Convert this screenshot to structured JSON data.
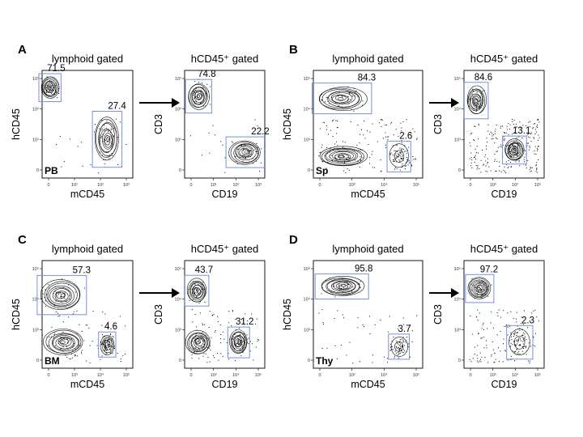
{
  "figure": {
    "panels": [
      {
        "letter": "A",
        "tissue": "PB",
        "plots": [
          {
            "title": "lymphoid gated",
            "xlabel": "mCD45",
            "ylabel": "hCD45",
            "gates": [
              {
                "pct": "71.5",
                "populations": [
                  {
                    "cx": 0.4,
                    "cy": 4.2,
                    "rx": 0.45,
                    "ry": 0.5,
                    "density": "high"
                  }
                ]
              },
              {
                "pct": "27.4",
                "populations": [
                  {
                    "cx": 3.3,
                    "cy": 1.8,
                    "rx": 0.6,
                    "ry": 1.0,
                    "density": "high"
                  }
                ]
              }
            ],
            "background_points": 25,
            "x_ticks": [
              "0",
              "10¹",
              "10²",
              "10³"
            ],
            "y_ticks": [
              "10³",
              "10²",
              "10¹",
              "0"
            ]
          },
          {
            "title": "hCD45⁺ gated",
            "xlabel": "CD19",
            "ylabel": "CD3",
            "gates": [
              {
                "pct": "74.8",
                "populations": [
                  {
                    "cx": 0.8,
                    "cy": 3.8,
                    "rx": 0.6,
                    "ry": 0.6,
                    "density": "high"
                  }
                ]
              },
              {
                "pct": "22.2",
                "populations": [
                  {
                    "cx": 3.5,
                    "cy": 1.2,
                    "rx": 0.9,
                    "ry": 0.55,
                    "density": "high"
                  }
                ]
              }
            ],
            "background_points": 20,
            "x_ticks": [
              "0",
              "10¹",
              "10²",
              "10³"
            ],
            "y_ticks": [
              "10³",
              "10²",
              "10¹",
              "0"
            ]
          }
        ]
      },
      {
        "letter": "B",
        "tissue": "Sp",
        "plots": [
          {
            "title": "lymphoid gated",
            "xlabel": "mCD45",
            "ylabel": "hCD45",
            "gates": [
              {
                "pct": "84.3",
                "populations": [
                  {
                    "cx": 1.2,
                    "cy": 3.7,
                    "rx": 1.0,
                    "ry": 0.55,
                    "density": "high"
                  }
                ]
              },
              {
                "pct": "2.6",
                "populations": [
                  {
                    "cx": 3.6,
                    "cy": 1.0,
                    "rx": 0.4,
                    "ry": 0.55,
                    "density": "low"
                  }
                ]
              }
            ],
            "extra_populations": [
              {
                "cx": 1.2,
                "cy": 1.0,
                "rx": 1.0,
                "ry": 0.45,
                "density": "high"
              }
            ],
            "background_points": 120,
            "x_ticks": [
              "0",
              "10³",
              "10⁴",
              "10⁵"
            ],
            "y_ticks": [
              "10⁵",
              "10⁴",
              "10³",
              "0"
            ]
          },
          {
            "title": "hCD45⁺ gated",
            "xlabel": "CD19",
            "ylabel": "CD3",
            "gates": [
              {
                "pct": "84.6",
                "populations": [
                  {
                    "cx": 0.7,
                    "cy": 3.6,
                    "rx": 0.55,
                    "ry": 0.65,
                    "density": "high"
                  }
                ]
              },
              {
                "pct": "13.1",
                "populations": [
                  {
                    "cx": 2.9,
                    "cy": 1.3,
                    "rx": 0.55,
                    "ry": 0.5,
                    "density": "high"
                  }
                ]
              }
            ],
            "background_points": 220,
            "x_ticks": [
              "0",
              "10³",
              "10⁴",
              "10⁵"
            ],
            "y_ticks": [
              "10⁵",
              "10⁴",
              "10³",
              "0"
            ]
          }
        ]
      },
      {
        "letter": "C",
        "tissue": "BM",
        "plots": [
          {
            "title": "lymphoid gated",
            "xlabel": "mCD45",
            "ylabel": "hCD45",
            "gates": [
              {
                "pct": "57.3",
                "populations": [
                  {
                    "cx": 1.0,
                    "cy": 3.4,
                    "rx": 1.0,
                    "ry": 0.7,
                    "density": "high"
                  }
                ]
              },
              {
                "pct": "4.6",
                "populations": [
                  {
                    "cx": 3.3,
                    "cy": 1.1,
                    "rx": 0.35,
                    "ry": 0.45,
                    "density": "med"
                  }
                ]
              }
            ],
            "extra_populations": [
              {
                "cx": 1.1,
                "cy": 1.2,
                "rx": 1.0,
                "ry": 0.6,
                "density": "high"
              }
            ],
            "background_points": 60,
            "x_ticks": [
              "0",
              "10³",
              "10⁴",
              "10⁵"
            ],
            "y_ticks": [
              "10⁵",
              "10⁴",
              "10³",
              "0"
            ]
          },
          {
            "title": "hCD45⁺ gated",
            "xlabel": "CD19",
            "ylabel": "CD3",
            "gates": [
              {
                "pct": "43.7",
                "populations": [
                  {
                    "cx": 0.7,
                    "cy": 3.6,
                    "rx": 0.55,
                    "ry": 0.55,
                    "density": "high"
                  }
                ]
              },
              {
                "pct": "31.2",
                "populations": [
                  {
                    "cx": 3.1,
                    "cy": 1.2,
                    "rx": 0.5,
                    "ry": 0.55,
                    "density": "high"
                  }
                ]
              }
            ],
            "extra_populations": [
              {
                "cx": 0.8,
                "cy": 1.2,
                "rx": 0.7,
                "ry": 0.55,
                "density": "high"
              }
            ],
            "background_points": 90,
            "x_ticks": [
              "0",
              "10³",
              "10⁴",
              "10⁵"
            ],
            "y_ticks": [
              "10⁵",
              "10⁴",
              "10³",
              "0"
            ]
          }
        ]
      },
      {
        "letter": "D",
        "tissue": "Thy",
        "plots": [
          {
            "title": "lymphoid gated",
            "xlabel": "mCD45",
            "ylabel": "hCD45",
            "gates": [
              {
                "pct": "95.8",
                "populations": [
                  {
                    "cx": 1.2,
                    "cy": 3.8,
                    "rx": 0.9,
                    "ry": 0.45,
                    "density": "high"
                  }
                ]
              },
              {
                "pct": "3.7",
                "populations": [
                  {
                    "cx": 3.6,
                    "cy": 1.0,
                    "rx": 0.35,
                    "ry": 0.45,
                    "density": "low"
                  }
                ]
              }
            ],
            "background_points": 40,
            "x_ticks": [
              "0",
              "10³",
              "10⁴",
              "10⁵"
            ],
            "y_ticks": [
              "10⁵",
              "10⁴",
              "10³",
              "0"
            ]
          },
          {
            "title": "hCD45⁺ gated",
            "xlabel": "CD19",
            "ylabel": "CD3",
            "gates": [
              {
                "pct": "97.2",
                "populations": [
                  {
                    "cx": 0.9,
                    "cy": 3.7,
                    "rx": 0.65,
                    "ry": 0.5,
                    "density": "high"
                  }
                ]
              },
              {
                "pct": "2.3",
                "populations": [
                  {
                    "cx": 3.2,
                    "cy": 1.2,
                    "rx": 0.6,
                    "ry": 0.6,
                    "density": "low"
                  }
                ]
              }
            ],
            "background_points": 120,
            "x_ticks": [
              "0",
              "10³",
              "10⁴",
              "10⁵"
            ],
            "y_ticks": [
              "10⁵",
              "10⁴",
              "10³",
              "0"
            ]
          }
        ]
      }
    ],
    "colors": {
      "gate": "#7b8fdc",
      "contour": "#111111",
      "frame": "#000000"
    }
  }
}
